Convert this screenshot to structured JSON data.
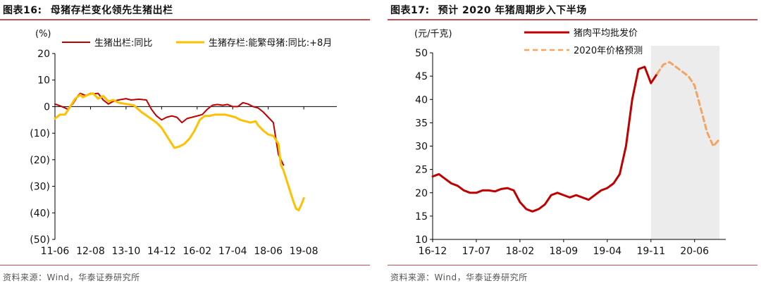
{
  "chart_data": [
    {
      "type": "line",
      "title": "母猪存栏变化领先生猪出栏",
      "figure_label": "图表16:",
      "source": "资料来源：Wind，华泰证券研究所",
      "yunit": "(%)",
      "ylim": [
        -50,
        20
      ],
      "yticks": [
        20,
        10,
        0,
        -10,
        -20,
        -30,
        -40,
        -50
      ],
      "yticklabels": [
        "20",
        "10",
        "0",
        "(10)",
        "(20)",
        "(30)",
        "(40)",
        "(50)"
      ],
      "xlim": [
        0,
        111
      ],
      "xticks": [
        0,
        14,
        28,
        42,
        56,
        70,
        84,
        98
      ],
      "xticklabels": [
        "11-06",
        "12-08",
        "13-10",
        "14-12",
        "16-02",
        "17-04",
        "18-06",
        "19-08"
      ],
      "legend_placement": "top",
      "grid": false,
      "colors": {
        "series1": "#c00000",
        "series2": "#ffc000"
      },
      "series": [
        {
          "name": "生猪出栏:同比",
          "color": "#c00000",
          "points": [
            [
              0,
              1
            ],
            [
              2,
              0.3
            ],
            [
              4,
              -0.5
            ],
            [
              5,
              -1
            ],
            [
              7,
              1
            ],
            [
              9,
              4
            ],
            [
              10,
              5
            ],
            [
              12,
              4.2
            ],
            [
              14,
              5
            ],
            [
              15,
              4.8
            ],
            [
              17,
              5
            ],
            [
              19,
              2.5
            ],
            [
              21,
              1
            ],
            [
              23,
              2
            ],
            [
              25,
              2.5
            ],
            [
              28,
              3
            ],
            [
              30,
              2.5
            ],
            [
              33,
              2.8
            ],
            [
              36,
              2.5
            ],
            [
              38,
              -1
            ],
            [
              40,
              -3.5
            ],
            [
              42,
              -5
            ],
            [
              44,
              -4
            ],
            [
              46,
              -3.5
            ],
            [
              48,
              -4
            ],
            [
              50,
              -6
            ],
            [
              52,
              -4.5
            ],
            [
              54,
              -4
            ],
            [
              56,
              -3.5
            ],
            [
              58,
              -3
            ],
            [
              60,
              -1
            ],
            [
              62,
              0.5
            ],
            [
              64,
              0.8
            ],
            [
              66,
              0.5
            ],
            [
              68,
              0.8
            ],
            [
              70,
              0
            ],
            [
              72,
              0
            ],
            [
              74,
              1.5
            ],
            [
              76,
              1
            ],
            [
              78,
              0
            ],
            [
              80,
              -0.5
            ],
            [
              82,
              -2
            ],
            [
              84,
              -4
            ],
            [
              85,
              -5
            ],
            [
              86,
              -6
            ],
            [
              88,
              -18
            ],
            [
              89,
              -20
            ],
            [
              90,
              -22
            ]
          ]
        },
        {
          "name": "生猪存栏:能繁母猪:同比:+8月",
          "color": "#ffc000",
          "points": [
            [
              0,
              -4.5
            ],
            [
              2,
              -3
            ],
            [
              4,
              -3
            ],
            [
              6,
              0
            ],
            [
              8,
              3
            ],
            [
              10,
              4.5
            ],
            [
              11,
              3.5
            ],
            [
              13,
              4.5
            ],
            [
              15,
              5
            ],
            [
              17,
              3
            ],
            [
              19,
              4
            ],
            [
              21,
              2
            ],
            [
              23,
              2.5
            ],
            [
              25,
              1.5
            ],
            [
              28,
              1
            ],
            [
              31,
              0.5
            ],
            [
              34,
              -2
            ],
            [
              37,
              -4
            ],
            [
              40,
              -6
            ],
            [
              42,
              -8
            ],
            [
              44,
              -11
            ],
            [
              46,
              -14
            ],
            [
              47,
              -15.5
            ],
            [
              49,
              -15
            ],
            [
              51,
              -14
            ],
            [
              53,
              -12
            ],
            [
              55,
              -9
            ],
            [
              57,
              -5
            ],
            [
              59,
              -3.5
            ],
            [
              61,
              -3.5
            ],
            [
              63,
              -3
            ],
            [
              65,
              -3
            ],
            [
              67,
              -3
            ],
            [
              69,
              -3.5
            ],
            [
              71,
              -4
            ],
            [
              73,
              -5
            ],
            [
              75,
              -5.5
            ],
            [
              77,
              -6
            ],
            [
              79,
              -5.5
            ],
            [
              80,
              -7
            ],
            [
              82,
              -9
            ],
            [
              84,
              -10.5
            ],
            [
              86,
              -11
            ],
            [
              88,
              -14
            ],
            [
              89,
              -22
            ],
            [
              90,
              -24
            ],
            [
              92,
              -30
            ],
            [
              94,
              -36
            ],
            [
              95,
              -38.5
            ],
            [
              96,
              -39
            ],
            [
              97,
              -37
            ],
            [
              98,
              -34.5
            ]
          ]
        }
      ]
    },
    {
      "type": "line",
      "title": "预计 2020 年猪周期步入下半场",
      "figure_label": "图表17:",
      "source": "资料来源：Wind，华泰证券研究所",
      "yunit": "(元/千克)",
      "ylim": [
        10,
        50
      ],
      "yticks": [
        50,
        45,
        40,
        35,
        30,
        25,
        20,
        15,
        10
      ],
      "xlim": [
        0,
        47
      ],
      "xticks": [
        0,
        7,
        14,
        21,
        28,
        35,
        42
      ],
      "xticklabels": [
        "16-12",
        "17-07",
        "18-02",
        "18-09",
        "19-04",
        "19-11",
        "20-06"
      ],
      "shaded_region": [
        35,
        46
      ],
      "legend_placement": "top",
      "grid": false,
      "colors": {
        "series1": "#c00000",
        "series2": "#f4a460",
        "shade": "#ececec"
      },
      "series": [
        {
          "name": "猪肉平均批发价",
          "color": "#c00000",
          "points": [
            [
              0,
              23.5
            ],
            [
              1,
              24
            ],
            [
              2,
              23
            ],
            [
              3,
              22
            ],
            [
              4,
              21.5
            ],
            [
              5,
              20.5
            ],
            [
              6,
              20
            ],
            [
              7,
              20
            ],
            [
              8,
              20.5
            ],
            [
              9,
              20.5
            ],
            [
              10,
              20.3
            ],
            [
              11,
              20.8
            ],
            [
              12,
              21
            ],
            [
              13,
              20.5
            ],
            [
              14,
              18
            ],
            [
              15,
              16.5
            ],
            [
              16,
              16
            ],
            [
              17,
              16.5
            ],
            [
              18,
              17.5
            ],
            [
              19,
              19.5
            ],
            [
              20,
              20
            ],
            [
              21,
              19.5
            ],
            [
              22,
              19
            ],
            [
              23,
              19.5
            ],
            [
              24,
              19
            ],
            [
              25,
              18.5
            ],
            [
              26,
              19.5
            ],
            [
              27,
              20.5
            ],
            [
              28,
              21
            ],
            [
              29,
              22
            ],
            [
              30,
              24
            ],
            [
              31,
              30
            ],
            [
              32,
              40
            ],
            [
              33,
              46.5
            ],
            [
              34,
              47
            ],
            [
              35,
              43.5
            ],
            [
              36,
              45.5
            ]
          ]
        },
        {
          "name": "2020年价格预测",
          "color": "#f4a460",
          "points": [
            [
              36,
              45.5
            ],
            [
              37,
              47.5
            ],
            [
              38,
              48
            ],
            [
              39,
              47
            ],
            [
              40,
              46
            ],
            [
              41,
              45
            ],
            [
              42,
              43
            ],
            [
              43,
              38
            ],
            [
              44,
              33
            ],
            [
              45,
              30
            ],
            [
              46,
              31.5
            ]
          ]
        }
      ]
    }
  ]
}
